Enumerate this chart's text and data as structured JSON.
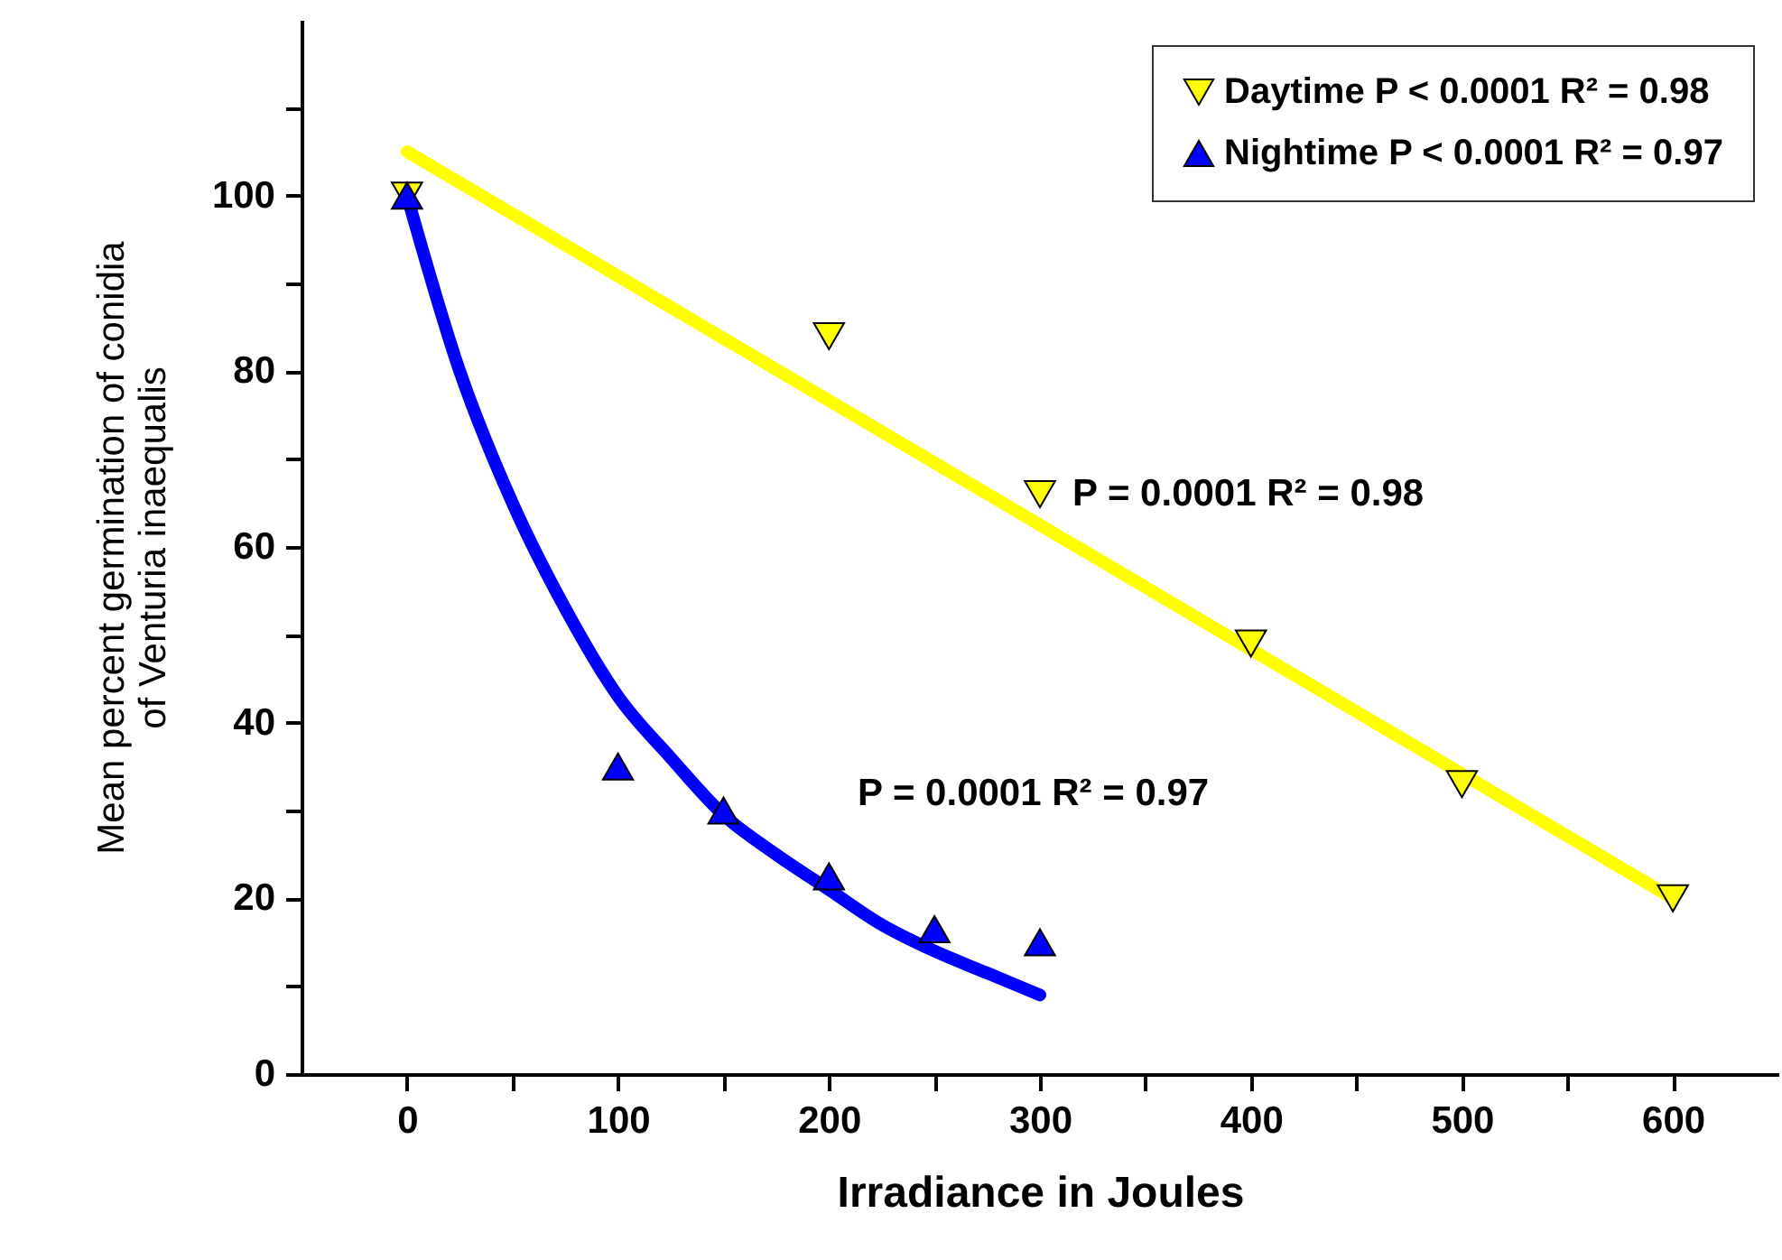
{
  "chart_data": {
    "type": "scatter",
    "xlabel": "Irradiance in Joules",
    "ylabel": "Mean percent germination of conidia\nof Venturia inaequalis",
    "xlim": [
      -50,
      650
    ],
    "ylim": [
      0,
      120
    ],
    "xticks": [
      0,
      {
        "value": 50,
        "label": null
      },
      100,
      {
        "value": 150,
        "label": null
      },
      200,
      {
        "value": 250,
        "label": null
      },
      300,
      {
        "value": 350,
        "label": null
      },
      400,
      {
        "value": 450,
        "label": null
      },
      500,
      {
        "value": 550,
        "label": null
      },
      600
    ],
    "yticks": [
      0,
      {
        "value": 10,
        "label": null
      },
      20,
      {
        "value": 30,
        "label": null
      },
      40,
      {
        "value": 50,
        "label": null
      },
      60,
      {
        "value": 70,
        "label": null
      },
      80,
      {
        "value": 90,
        "label": null
      },
      100,
      {
        "value": 110,
        "label": null
      }
    ],
    "legend": "top right",
    "grid": false,
    "series": [
      {
        "type": "line",
        "color": "#ffff00",
        "x": [
          0,
          600
        ],
        "values": [
          105,
          20
        ]
      },
      {
        "type": "line",
        "color": "#0000ff",
        "x": [
          0,
          25,
          50,
          75,
          100,
          125,
          150,
          175,
          200,
          225,
          250,
          275,
          300
        ],
        "values": [
          100,
          80,
          65,
          53,
          43,
          36,
          29.5,
          25,
          21,
          17,
          14,
          11.5,
          9
        ]
      },
      {
        "name": "Daytime P < 0.0001 R² = 0.98",
        "marker": "triangle-down",
        "color": "#ffff00",
        "x": [
          0,
          200,
          300,
          400,
          500,
          600
        ],
        "values": [
          100,
          84,
          66,
          49,
          33,
          20
        ]
      },
      {
        "name": "Nightime P < 0.0001 R² = 0.97",
        "marker": "triangle",
        "color": "#0000ff",
        "x": [
          0,
          100,
          150,
          200,
          250,
          300
        ],
        "values": [
          100,
          35,
          30,
          22.5,
          16.5,
          15
        ]
      }
    ],
    "annotations": [
      {
        "text": "P = 0.0001 R² = 0.98",
        "x": 300,
        "y": 66
      },
      "P = 0.0001 R² = 0.97"
    ]
  }
}
